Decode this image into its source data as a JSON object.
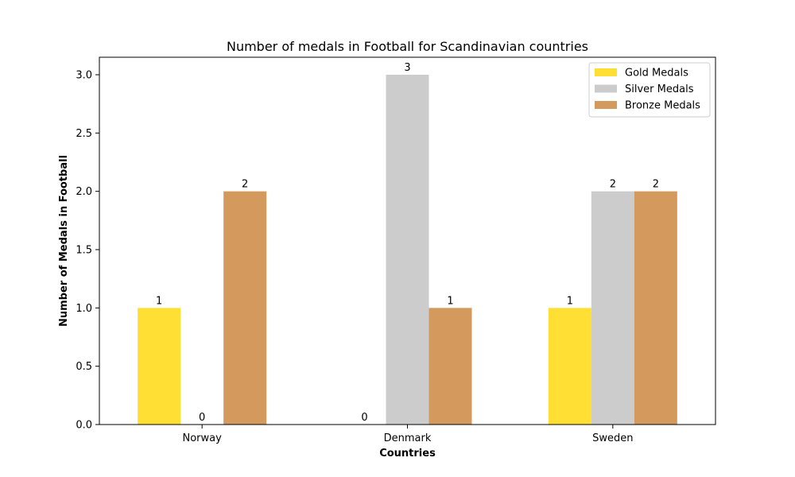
{
  "chart_data": {
    "type": "bar",
    "title": "Number of medals in Football for Scandinavian countries",
    "xlabel": "Countries",
    "ylabel": "Number of Medals in Football",
    "categories": [
      "Norway",
      "Denmark",
      "Sweden"
    ],
    "series": [
      {
        "name": "Gold Medals",
        "values": [
          1,
          0,
          1
        ],
        "color": "#ffdf33"
      },
      {
        "name": "Silver Medals",
        "values": [
          0,
          3,
          2
        ],
        "color": "#cccccc"
      },
      {
        "name": "Bronze Medals",
        "values": [
          2,
          1,
          2
        ],
        "color": "#d4995c"
      }
    ],
    "ylim": [
      0,
      3.15
    ],
    "yticks": [
      "0.0",
      "0.5",
      "1.0",
      "1.5",
      "2.0",
      "2.5",
      "3.0"
    ],
    "grid": false,
    "legend_position": "top-right"
  }
}
